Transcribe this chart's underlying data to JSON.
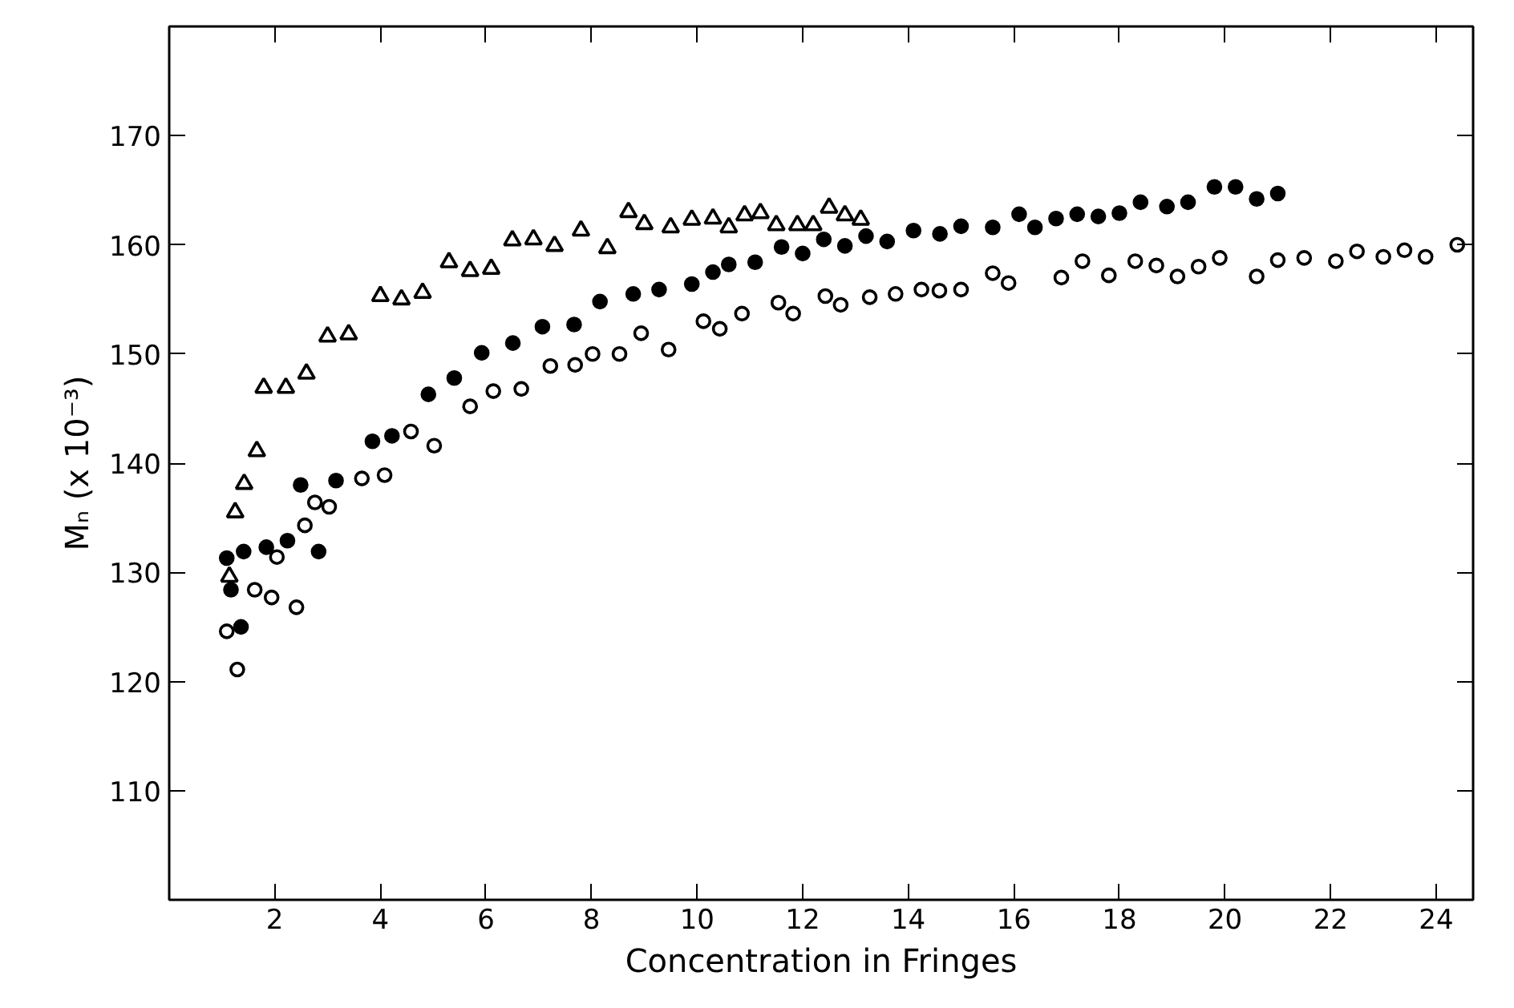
{
  "chart_data": {
    "type": "scatter",
    "xlabel": "Concentration in Fringes",
    "ylabel": "Mₙ (x 10⁻³)",
    "xlim": [
      0,
      24.7
    ],
    "ylim": [
      100,
      180
    ],
    "xticks": [
      2,
      4,
      6,
      8,
      10,
      12,
      14,
      16,
      18,
      20,
      22,
      24
    ],
    "yticks": [
      110,
      120,
      130,
      140,
      150,
      160,
      170
    ],
    "series": [
      {
        "color": "#000000",
        "marker": "triangle_open",
        "x": [
          1.14,
          1.25,
          1.42,
          1.66,
          1.79,
          2.21,
          2.6,
          3.0,
          3.4,
          4.0,
          4.4,
          4.8,
          5.3,
          5.7,
          6.1,
          6.5,
          6.9,
          7.3,
          7.8,
          8.3,
          8.7,
          9.0,
          9.5,
          9.9,
          10.3,
          10.6,
          10.9,
          11.2,
          11.5,
          11.9,
          12.2,
          12.5,
          12.8,
          13.1
        ],
        "values": [
          129.6,
          135.5,
          138.1,
          141.1,
          146.9,
          146.9,
          148.2,
          151.6,
          151.8,
          155.3,
          155.0,
          155.6,
          158.4,
          157.6,
          157.8,
          160.4,
          160.5,
          159.9,
          161.3,
          159.7,
          163.0,
          161.9,
          161.6,
          162.3,
          162.4,
          161.6,
          162.7,
          162.9,
          161.8,
          161.8,
          161.8,
          163.4,
          162.7,
          162.3
        ]
      },
      {
        "color": "#000000",
        "marker": "circle",
        "x": [
          1.09,
          1.17,
          1.36,
          1.41,
          1.84,
          2.24,
          2.49,
          2.83,
          3.16,
          3.85,
          4.22,
          4.91,
          5.4,
          5.92,
          6.51,
          7.07,
          7.67,
          8.16,
          8.79,
          9.28,
          9.9,
          10.3,
          10.6,
          11.1,
          11.6,
          12.0,
          12.4,
          12.8,
          13.2,
          13.6,
          14.1,
          14.6,
          15.0,
          15.6,
          16.1,
          16.4,
          16.8,
          17.2,
          17.6,
          18.0,
          18.4,
          18.9,
          19.3,
          19.8,
          20.2,
          20.6,
          21.0
        ],
        "values": [
          131.3,
          128.4,
          125.0,
          131.9,
          132.3,
          132.9,
          138.0,
          131.9,
          138.4,
          142.0,
          142.5,
          146.3,
          147.8,
          150.1,
          151.0,
          152.5,
          152.7,
          154.8,
          155.5,
          155.9,
          156.4,
          157.5,
          158.2,
          158.4,
          159.8,
          159.2,
          160.5,
          159.9,
          160.8,
          160.3,
          161.3,
          161.0,
          161.7,
          161.6,
          162.8,
          161.6,
          162.4,
          162.8,
          162.6,
          162.9,
          163.9,
          163.5,
          163.9,
          165.3,
          165.3,
          164.2,
          164.7
        ]
      },
      {
        "color": "#000000",
        "marker": "circle_open",
        "x": [
          1.09,
          1.29,
          1.62,
          1.94,
          2.04,
          2.41,
          2.57,
          2.76,
          3.03,
          3.65,
          4.08,
          4.58,
          5.02,
          5.7,
          6.14,
          6.67,
          7.22,
          7.69,
          8.02,
          8.53,
          8.94,
          9.46,
          10.12,
          10.43,
          10.85,
          11.54,
          11.82,
          12.43,
          12.72,
          13.27,
          13.76,
          14.25,
          14.59,
          15.0,
          15.6,
          15.9,
          16.9,
          17.3,
          17.8,
          18.3,
          18.7,
          19.1,
          19.5,
          19.9,
          20.6,
          21.0,
          21.5,
          22.1,
          22.5,
          23.0,
          23.4,
          23.8,
          24.4
        ],
        "values": [
          124.6,
          121.1,
          128.4,
          127.7,
          131.4,
          126.8,
          134.3,
          136.4,
          136.0,
          138.6,
          138.9,
          142.9,
          141.6,
          145.2,
          146.6,
          146.8,
          148.9,
          149.0,
          150.0,
          150.0,
          151.9,
          150.4,
          153.0,
          152.3,
          153.7,
          154.7,
          153.7,
          155.3,
          154.5,
          155.2,
          155.5,
          155.9,
          155.8,
          155.9,
          157.4,
          156.5,
          157.0,
          158.5,
          157.2,
          158.5,
          158.1,
          157.1,
          158.0,
          158.8,
          157.1,
          158.6,
          158.8,
          158.5,
          159.4,
          158.9,
          159.5,
          158.9,
          160.0
        ]
      }
    ]
  }
}
